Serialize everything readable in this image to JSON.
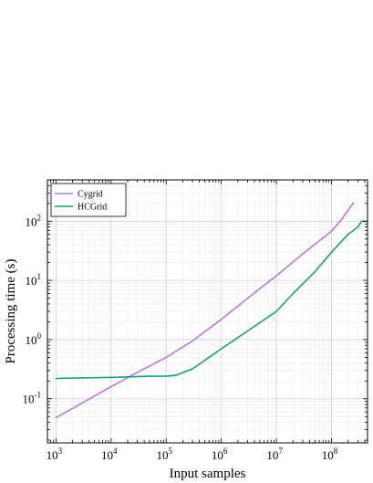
{
  "chart_data": {
    "type": "line",
    "xlabel": "Input samples",
    "ylabel": "Processing time (s)",
    "x_scale": "log",
    "y_scale": "log",
    "xlim": [
      700,
      450000000
    ],
    "ylim": [
      0.018,
      500
    ],
    "grid": true,
    "legend_position": "top-left",
    "x_ticks": [
      {
        "base": "10",
        "exp": "3",
        "value": 1000
      },
      {
        "base": "10",
        "exp": "4",
        "value": 10000
      },
      {
        "base": "10",
        "exp": "5",
        "value": 100000
      },
      {
        "base": "10",
        "exp": "6",
        "value": 1000000
      },
      {
        "base": "10",
        "exp": "7",
        "value": 10000000
      },
      {
        "base": "10",
        "exp": "8",
        "value": 100000000
      }
    ],
    "y_ticks": [
      {
        "base": "10",
        "exp": "-1",
        "value": 0.1
      },
      {
        "base": "10",
        "exp": "0",
        "value": 1
      },
      {
        "base": "10",
        "exp": "1",
        "value": 10
      },
      {
        "base": "10",
        "exp": "2",
        "value": 100
      }
    ],
    "series": [
      {
        "name": "Cygrid",
        "color": "#b57ad9",
        "x": [
          1000,
          3000,
          10000,
          30000,
          100000,
          300000,
          1000000,
          3000000,
          10000000,
          30000000,
          100000000,
          150000000,
          250000000
        ],
        "y": [
          0.048,
          0.085,
          0.16,
          0.28,
          0.5,
          0.95,
          2.2,
          5.0,
          12.0,
          28.0,
          68.0,
          105.0,
          205.0
        ]
      },
      {
        "name": "HCGrid",
        "color": "#199e78",
        "x": [
          1000,
          10000,
          50000,
          100000,
          150000,
          300000,
          1000000,
          3000000,
          10000000,
          20000000,
          50000000,
          100000000,
          200000000,
          300000000,
          350000000,
          450000000
        ],
        "y": [
          0.22,
          0.23,
          0.24,
          0.24,
          0.25,
          0.32,
          0.7,
          1.4,
          3.0,
          6.0,
          14.0,
          30.0,
          60.0,
          80.0,
          100.0,
          100.0
        ]
      }
    ]
  }
}
